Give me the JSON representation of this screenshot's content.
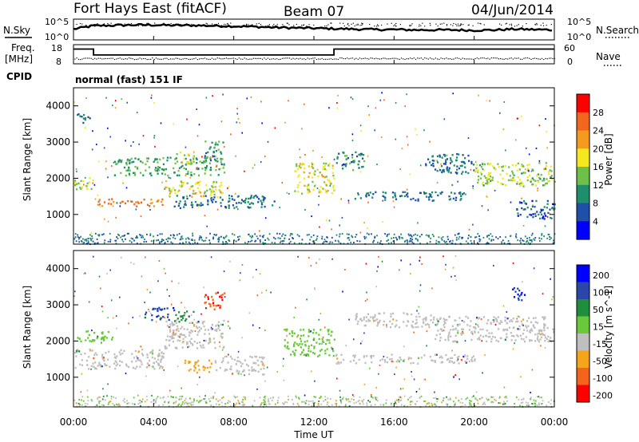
{
  "header": {
    "station": "Fort Hays East (fitACF)",
    "beam": "Beam 07",
    "date": "04/Jun/2014"
  },
  "noise_panel": {
    "left_label": "N.Sky",
    "right_label": "N.Search",
    "left_ticks": [
      "10^5",
      "10^0"
    ],
    "right_ticks": [
      "10^5",
      "10^0"
    ]
  },
  "freq_panel": {
    "left_label_1": "Freq.",
    "left_label_2": "[MHz]",
    "right_label": "Nave",
    "left_ticks": [
      "18",
      "8"
    ],
    "right_ticks": [
      "60",
      "0"
    ]
  },
  "cpid": {
    "label": "CPID",
    "value": "normal (fast) 151 IF"
  },
  "chart_data": [
    {
      "type": "line",
      "name": "noise",
      "ylabel": "N.Sky",
      "y2label": "N.Search",
      "x_unit": "hours UT",
      "xlim": [
        0,
        24
      ],
      "ylim": [
        0,
        5
      ],
      "x": [
        0,
        1,
        2,
        3,
        4,
        5,
        6,
        7,
        8,
        9,
        10,
        11,
        12,
        13,
        14,
        15,
        16,
        17,
        18,
        19,
        20,
        21,
        22,
        23,
        24
      ],
      "y": [
        2.6,
        3.4,
        3.5,
        3.6,
        3.6,
        3.5,
        3.5,
        3.4,
        3.3,
        3.2,
        3.0,
        2.9,
        2.8,
        2.7,
        2.6,
        2.5,
        2.5,
        2.4,
        2.4,
        2.4,
        2.3,
        2.4,
        2.6,
        2.5,
        2.4
      ]
    },
    {
      "type": "line",
      "name": "frequency",
      "ylabel": "Freq. [MHz]",
      "y2label": "Nave",
      "xlim": [
        0,
        24
      ],
      "ylim": [
        5,
        18
      ],
      "x": [
        0,
        1,
        1,
        13,
        13,
        24
      ],
      "y": [
        15,
        15,
        11,
        11,
        15,
        15
      ]
    },
    {
      "type": "heatmap",
      "name": "power",
      "ylabel": "Slant Range [km]",
      "colorbar_label": "Power [dB]",
      "colorbar_ticks": [
        "28",
        "24",
        "20",
        "16",
        "12",
        "8",
        "4"
      ],
      "colors": [
        "#0000ff",
        "#1f4fa8",
        "#1e8f6a",
        "#6fbf4b",
        "#f4e81e",
        "#f59a1c",
        "#f2661d",
        "#ff0000"
      ],
      "xlim": [
        0,
        24
      ],
      "ylim": [
        180,
        4500
      ],
      "y_ticks": [
        "4000",
        "3000",
        "2000",
        "1000"
      ],
      "blobs": [
        [
          0.0,
          1.0,
          1650,
          2050,
          16
        ],
        [
          1.0,
          4.5,
          1250,
          1450,
          24
        ],
        [
          4.5,
          7.5,
          1500,
          1950,
          18
        ],
        [
          2.0,
          7.5,
          2100,
          2600,
          12
        ],
        [
          5.0,
          6.0,
          2450,
          2750,
          17
        ],
        [
          6.5,
          7.5,
          2400,
          3050,
          11
        ],
        [
          5.0,
          10.0,
          1200,
          1550,
          8
        ],
        [
          11.0,
          13.0,
          1600,
          2450,
          17
        ],
        [
          13.0,
          14.5,
          2250,
          2750,
          10
        ],
        [
          14.0,
          19.5,
          1400,
          1650,
          8
        ],
        [
          17.5,
          20.0,
          2150,
          2700,
          8
        ],
        [
          20.0,
          24.0,
          1800,
          2450,
          15
        ],
        [
          22.0,
          24.0,
          900,
          1400,
          7
        ],
        [
          0.0,
          0.8,
          3550,
          3800,
          8
        ]
      ]
    },
    {
      "type": "heatmap",
      "name": "velocity",
      "ylabel": "Slant Range [km]",
      "colorbar_label": "Velocity [m s^-1]",
      "colorbar_ticks": [
        "200",
        "100",
        "50",
        "15",
        "-15",
        "-50",
        "-100",
        "-200"
      ],
      "colors": [
        "#0000ff",
        "#2a46a8",
        "#1f8f3e",
        "#6ac93a",
        "#bfbfbf",
        "#bfbfbf",
        "#f5a51a",
        "#f5641c",
        "#ff0000"
      ],
      "xlim": [
        0,
        24
      ],
      "ylim": [
        180,
        4500
      ],
      "y_ticks": [
        "4000",
        "3000",
        "2000",
        "1000"
      ],
      "blobs": [
        [
          0.0,
          4.5,
          1250,
          1800,
          0
        ],
        [
          4.5,
          7.5,
          1800,
          2600,
          0
        ],
        [
          3.5,
          5.0,
          2600,
          2950,
          180
        ],
        [
          5.0,
          6.0,
          2550,
          2850,
          60
        ],
        [
          6.5,
          7.5,
          2900,
          3400,
          -200
        ],
        [
          5.5,
          7.0,
          1150,
          1500,
          -60
        ],
        [
          7.0,
          9.5,
          1100,
          1600,
          0
        ],
        [
          10.5,
          13.0,
          1600,
          2350,
          40
        ],
        [
          13.0,
          20.0,
          1400,
          1650,
          0
        ],
        [
          14.0,
          18.0,
          2400,
          2800,
          0
        ],
        [
          18.0,
          24.0,
          2000,
          2700,
          0
        ],
        [
          21.8,
          22.5,
          3150,
          3500,
          200
        ],
        [
          0.0,
          2.0,
          2000,
          2300,
          40
        ]
      ]
    }
  ],
  "x_axis": {
    "label": "Time UT",
    "ticks": [
      "00:00",
      "04:00",
      "08:00",
      "12:00",
      "16:00",
      "20:00",
      "00:00"
    ]
  }
}
